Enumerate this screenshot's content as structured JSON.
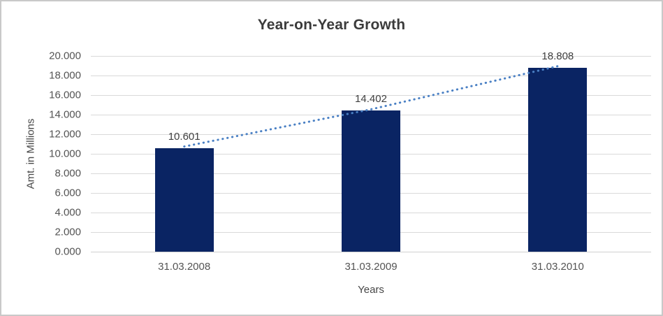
{
  "chart_data": {
    "type": "bar",
    "title": "Year-on-Year Growth",
    "xlabel": "Years",
    "ylabel": "Amt. in Millions",
    "categories": [
      "31.03.2008",
      "31.03.2009",
      "31.03.2010"
    ],
    "values": [
      10.601,
      14.402,
      18.808
    ],
    "data_labels": [
      "10.601",
      "14.402",
      "18.808"
    ],
    "ylim": [
      0,
      20
    ],
    "ytick_step": 2,
    "ytick_labels": [
      "0.000",
      "2.000",
      "4.000",
      "6.000",
      "8.000",
      "10.000",
      "12.000",
      "14.000",
      "16.000",
      "18.000",
      "20.000"
    ],
    "grid": true,
    "legend": "none",
    "colors": {
      "bar": "#0a2463",
      "trendline": "#4a80c4",
      "gridline": "#d9d9d9",
      "title_text": "#3b3b3b",
      "axis_text": "#545454"
    },
    "trendline": {
      "style": "dotted",
      "through": "bar-tops"
    }
  }
}
